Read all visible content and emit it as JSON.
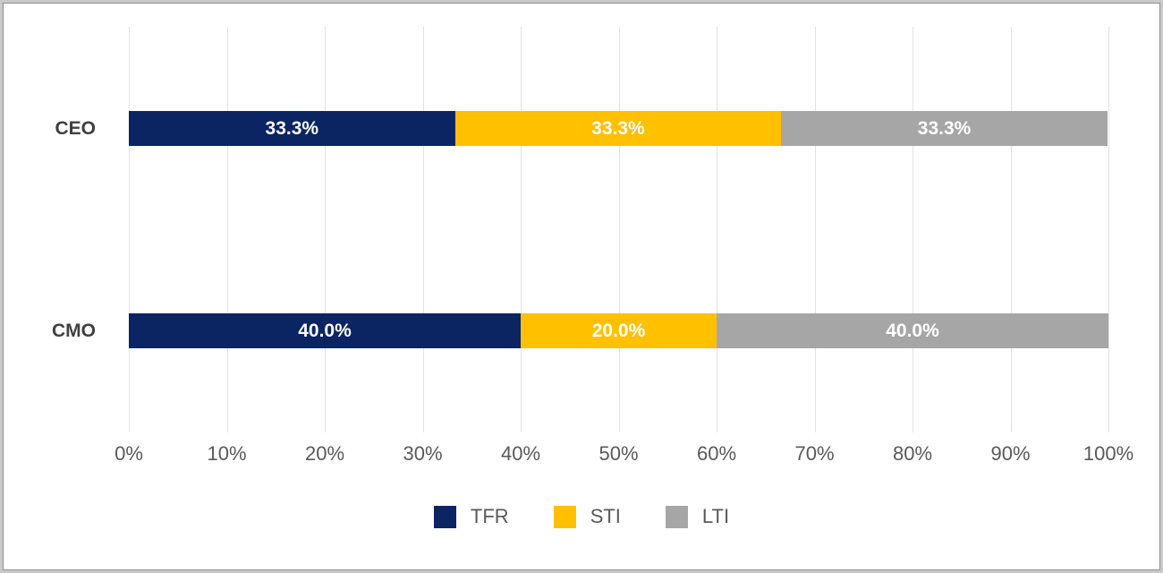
{
  "chart_data": {
    "type": "bar",
    "orientation": "horizontal-stacked",
    "title": "",
    "xlabel": "",
    "ylabel": "",
    "xlim": [
      0,
      100
    ],
    "grid": true,
    "legend_position": "bottom",
    "categories": [
      "CEO",
      "CMO"
    ],
    "series": [
      {
        "name": "TFR",
        "color": "#0b2563",
        "values": [
          33.3,
          40.0
        ]
      },
      {
        "name": "STI",
        "color": "#ffc000",
        "values": [
          33.3,
          20.0
        ]
      },
      {
        "name": "LTI",
        "color": "#a6a6a6",
        "values": [
          33.3,
          40.0
        ]
      }
    ],
    "data_labels": [
      [
        "33.3%",
        "33.3%",
        "33.3%"
      ],
      [
        "40.0%",
        "20.0%",
        "40.0%"
      ]
    ],
    "x_ticks": [
      "0%",
      "10%",
      "20%",
      "30%",
      "40%",
      "50%",
      "60%",
      "70%",
      "80%",
      "90%",
      "100%"
    ]
  },
  "colors": {
    "background": "#ffffff",
    "frame_outer": "#c9c9c9",
    "frame_inner": "#909090",
    "gridline": "#e2e2e2",
    "bar_label_text": "#ffffff",
    "category_label_text": "#3f3f3f",
    "axis_label_text": "#595959",
    "legend_text": "#595959"
  }
}
